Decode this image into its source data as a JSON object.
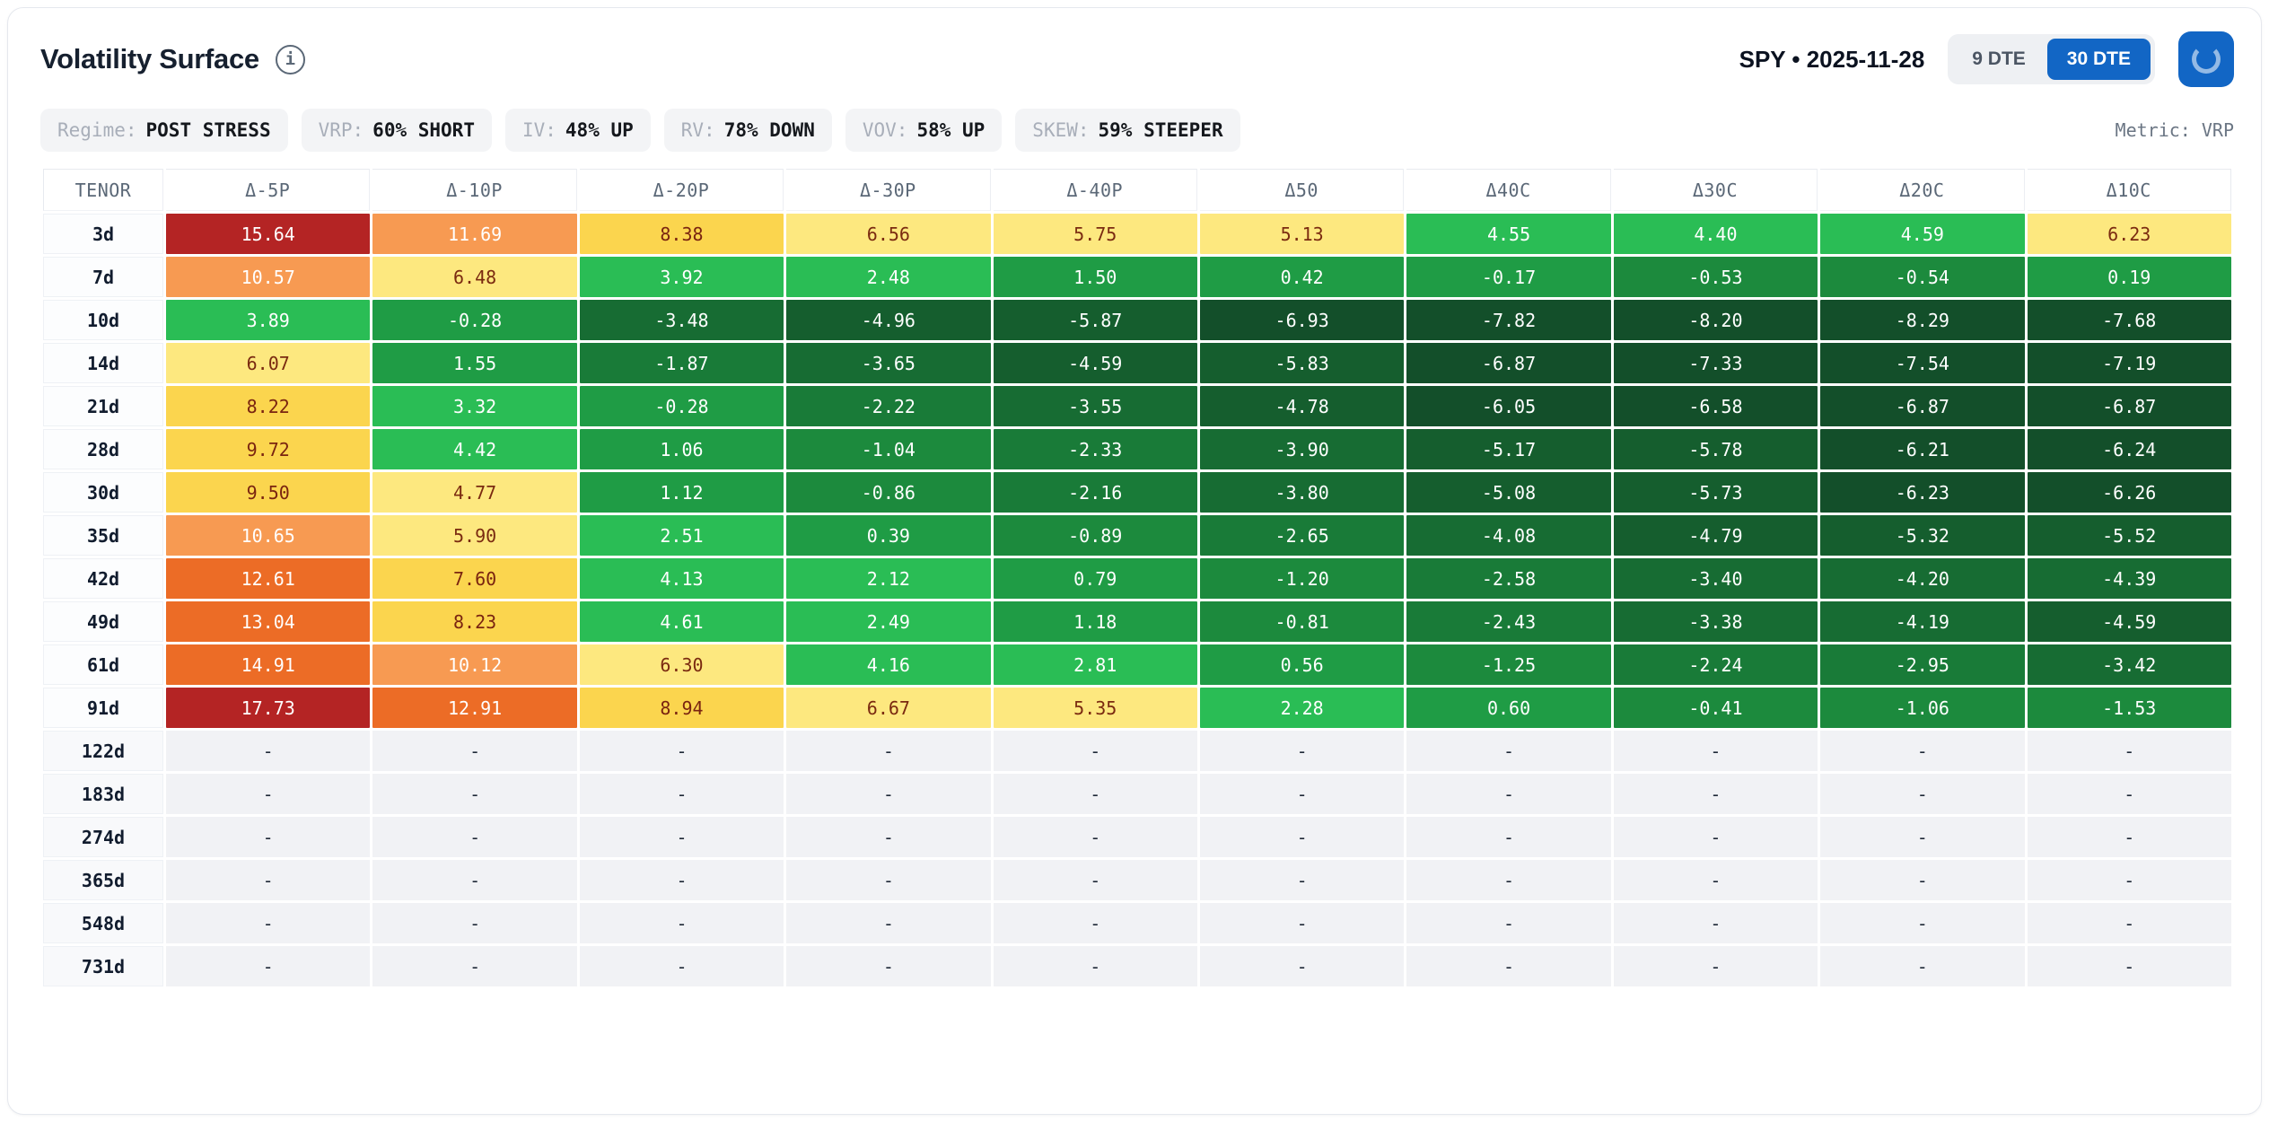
{
  "header": {
    "title": "Volatility Surface",
    "info_icon": "i",
    "symbol_date": "SPY • 2025-11-28",
    "dte_options": [
      {
        "label": "9 DTE",
        "active": false
      },
      {
        "label": "30 DTE",
        "active": true
      }
    ]
  },
  "badges": {
    "items": [
      {
        "label": "Regime:",
        "value": "POST STRESS"
      },
      {
        "label": "VRP:",
        "value": "60% SHORT"
      },
      {
        "label": "IV:",
        "value": "48% UP"
      },
      {
        "label": "RV:",
        "value": "78% DOWN"
      },
      {
        "label": "VOV:",
        "value": "58% UP"
      },
      {
        "label": "SKEW:",
        "value": "59% STEEPER"
      }
    ],
    "metric_label": "Metric: VRP"
  },
  "table": {
    "columns": [
      "TENOR",
      "Δ-5P",
      "Δ-10P",
      "Δ-20P",
      "Δ-30P",
      "Δ-40P",
      "Δ50",
      "Δ40C",
      "Δ30C",
      "Δ20C",
      "Δ10C"
    ],
    "empty_placeholder": "-",
    "rows": [
      {
        "tenor": "3d",
        "values": [
          15.64,
          11.69,
          8.38,
          6.56,
          5.75,
          5.13,
          4.55,
          4.4,
          4.59,
          6.23
        ]
      },
      {
        "tenor": "7d",
        "values": [
          10.57,
          6.48,
          3.92,
          2.48,
          1.5,
          0.42,
          -0.17,
          -0.53,
          -0.54,
          0.19
        ]
      },
      {
        "tenor": "10d",
        "values": [
          3.89,
          -0.28,
          -3.48,
          -4.96,
          -5.87,
          -6.93,
          -7.82,
          -8.2,
          -8.29,
          -7.68
        ]
      },
      {
        "tenor": "14d",
        "values": [
          6.07,
          1.55,
          -1.87,
          -3.65,
          -4.59,
          -5.83,
          -6.87,
          -7.33,
          -7.54,
          -7.19
        ]
      },
      {
        "tenor": "21d",
        "values": [
          8.22,
          3.32,
          -0.28,
          -2.22,
          -3.55,
          -4.78,
          -6.05,
          -6.58,
          -6.87,
          -6.87
        ]
      },
      {
        "tenor": "28d",
        "values": [
          9.72,
          4.42,
          1.06,
          -1.04,
          -2.33,
          -3.9,
          -5.17,
          -5.78,
          -6.21,
          -6.24
        ]
      },
      {
        "tenor": "30d",
        "values": [
          9.5,
          4.77,
          1.12,
          -0.86,
          -2.16,
          -3.8,
          -5.08,
          -5.73,
          -6.23,
          -6.26
        ]
      },
      {
        "tenor": "35d",
        "values": [
          10.65,
          5.9,
          2.51,
          0.39,
          -0.89,
          -2.65,
          -4.08,
          -4.79,
          -5.32,
          -5.52
        ]
      },
      {
        "tenor": "42d",
        "values": [
          12.61,
          7.6,
          4.13,
          2.12,
          0.79,
          -1.2,
          -2.58,
          -3.4,
          -4.2,
          -4.39
        ]
      },
      {
        "tenor": "49d",
        "values": [
          13.04,
          8.23,
          4.61,
          2.49,
          1.18,
          -0.81,
          -2.43,
          -3.38,
          -4.19,
          -4.59
        ]
      },
      {
        "tenor": "61d",
        "values": [
          14.91,
          10.12,
          6.3,
          4.16,
          2.81,
          0.56,
          -1.25,
          -2.24,
          -2.95,
          -3.42
        ]
      },
      {
        "tenor": "91d",
        "values": [
          17.73,
          12.91,
          8.94,
          6.67,
          5.35,
          2.28,
          0.6,
          -0.41,
          -1.06,
          -1.53
        ]
      },
      {
        "tenor": "122d",
        "values": [
          null,
          null,
          null,
          null,
          null,
          null,
          null,
          null,
          null,
          null
        ]
      },
      {
        "tenor": "183d",
        "values": [
          null,
          null,
          null,
          null,
          null,
          null,
          null,
          null,
          null,
          null
        ]
      },
      {
        "tenor": "274d",
        "values": [
          null,
          null,
          null,
          null,
          null,
          null,
          null,
          null,
          null,
          null
        ]
      },
      {
        "tenor": "365d",
        "values": [
          null,
          null,
          null,
          null,
          null,
          null,
          null,
          null,
          null,
          null
        ]
      },
      {
        "tenor": "548d",
        "values": [
          null,
          null,
          null,
          null,
          null,
          null,
          null,
          null,
          null,
          null
        ]
      },
      {
        "tenor": "731d",
        "values": [
          null,
          null,
          null,
          null,
          null,
          null,
          null,
          null,
          null,
          null
        ]
      }
    ]
  },
  "color_scale": {
    "bins": [
      {
        "min": 15.0,
        "bg": "#b42424",
        "fg": "#ffffff"
      },
      {
        "min": 12.0,
        "bg": "#ec6c26",
        "fg": "#ffffff"
      },
      {
        "min": 9.9,
        "bg": "#f79a52",
        "fg": "#ffffff"
      },
      {
        "min": 7.4,
        "bg": "#fbd54e",
        "fg": "#7a2410"
      },
      {
        "min": 4.7,
        "bg": "#fde87f",
        "fg": "#7a2a10"
      },
      {
        "min": 2.0,
        "bg": "#2abd55",
        "fg": "#ffffff"
      },
      {
        "min": -0.35,
        "bg": "#1f9c45",
        "fg": "#ffffff"
      },
      {
        "min": -1.6,
        "bg": "#1c8a3d",
        "fg": "#ffffff"
      },
      {
        "min": -3.0,
        "bg": "#197b38",
        "fg": "#ffffff"
      },
      {
        "min": -4.5,
        "bg": "#176c33",
        "fg": "#ffffff"
      },
      {
        "min": -6.0,
        "bg": "#155e2e",
        "fg": "#ffffff"
      },
      {
        "min": -99.0,
        "bg": "#134f2a",
        "fg": "#ffffff"
      }
    ],
    "empty": {
      "bg": "#f1f2f5",
      "fg": "#1f2937"
    }
  },
  "colors": {
    "accent_blue": "#1266c5",
    "card_border": "#e5e8ee",
    "badge_bg": "#f3f4f6"
  }
}
